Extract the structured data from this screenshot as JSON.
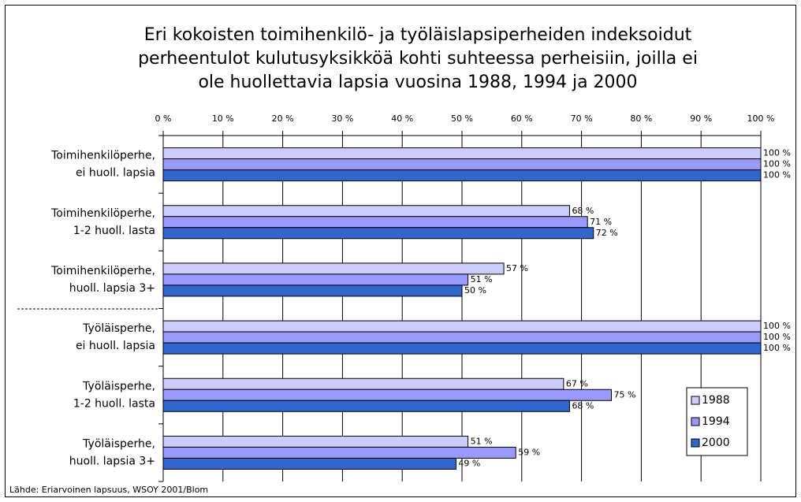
{
  "chart_data": {
    "type": "hbar",
    "title": [
      "Eri kokoisten toimihenkilö- ja työläislapsiperheiden indeksoidut",
      "perheentulot kulutusyksikköä kohti suhteessa perheisiin, joilla ei",
      "ole huollettavia lapsia vuosina 1988, 1994 ja 2000"
    ],
    "categories": [
      [
        "Toimihenkilöperhe,",
        "ei huoll. lapsia"
      ],
      [
        "Toimihenkilöperhe,",
        "1-2 huoll. lasta"
      ],
      [
        "Toimihenkilöperhe,",
        "huoll. lapsia 3+"
      ],
      [
        "Työläisperhe,",
        "ei huoll. lapsia"
      ],
      [
        "Työläisperhe,",
        "1-2 huoll. lasta"
      ],
      [
        "Työläisperhe,",
        "huoll. lapsia 3+"
      ]
    ],
    "series": [
      {
        "name": "1988",
        "color": "#ccccff",
        "values": [
          100,
          68,
          57,
          100,
          67,
          51
        ],
        "value_labels": [
          "100 %",
          "68 %",
          "57 %",
          "100 %",
          "67 %",
          "51 %"
        ]
      },
      {
        "name": "1994",
        "color": "#9999ff",
        "values": [
          100,
          71,
          51,
          100,
          75,
          59
        ],
        "value_labels": [
          "100 %",
          "71 %",
          "51 %",
          "100 %",
          "75 %",
          "59 %"
        ]
      },
      {
        "name": "2000",
        "color": "#3366cc",
        "values": [
          100,
          72,
          50,
          100,
          68,
          49
        ],
        "value_labels": [
          "100 %",
          "72 %",
          "50 %",
          "100 %",
          "68 %",
          "49 %"
        ]
      }
    ],
    "xlim": [
      0,
      100
    ],
    "xticks": [
      {
        "value": 0,
        "label": "0 %"
      },
      {
        "value": 10,
        "label": "10 %"
      },
      {
        "value": 20,
        "label": "20 %"
      },
      {
        "value": 30,
        "label": "30 %"
      },
      {
        "value": 40,
        "label": "40 %"
      },
      {
        "value": 50,
        "label": "50 %"
      },
      {
        "value": 60,
        "label": "60 %"
      },
      {
        "value": 70,
        "label": "70 %"
      },
      {
        "value": 80,
        "label": "80 %"
      },
      {
        "value": 90,
        "label": "90 %"
      },
      {
        "value": 100,
        "label": "100 %"
      }
    ],
    "grid": true,
    "legend": "lower right",
    "source": "Lähde: Eriarvoinen lapsuus, WSOY 2001/Blom"
  }
}
